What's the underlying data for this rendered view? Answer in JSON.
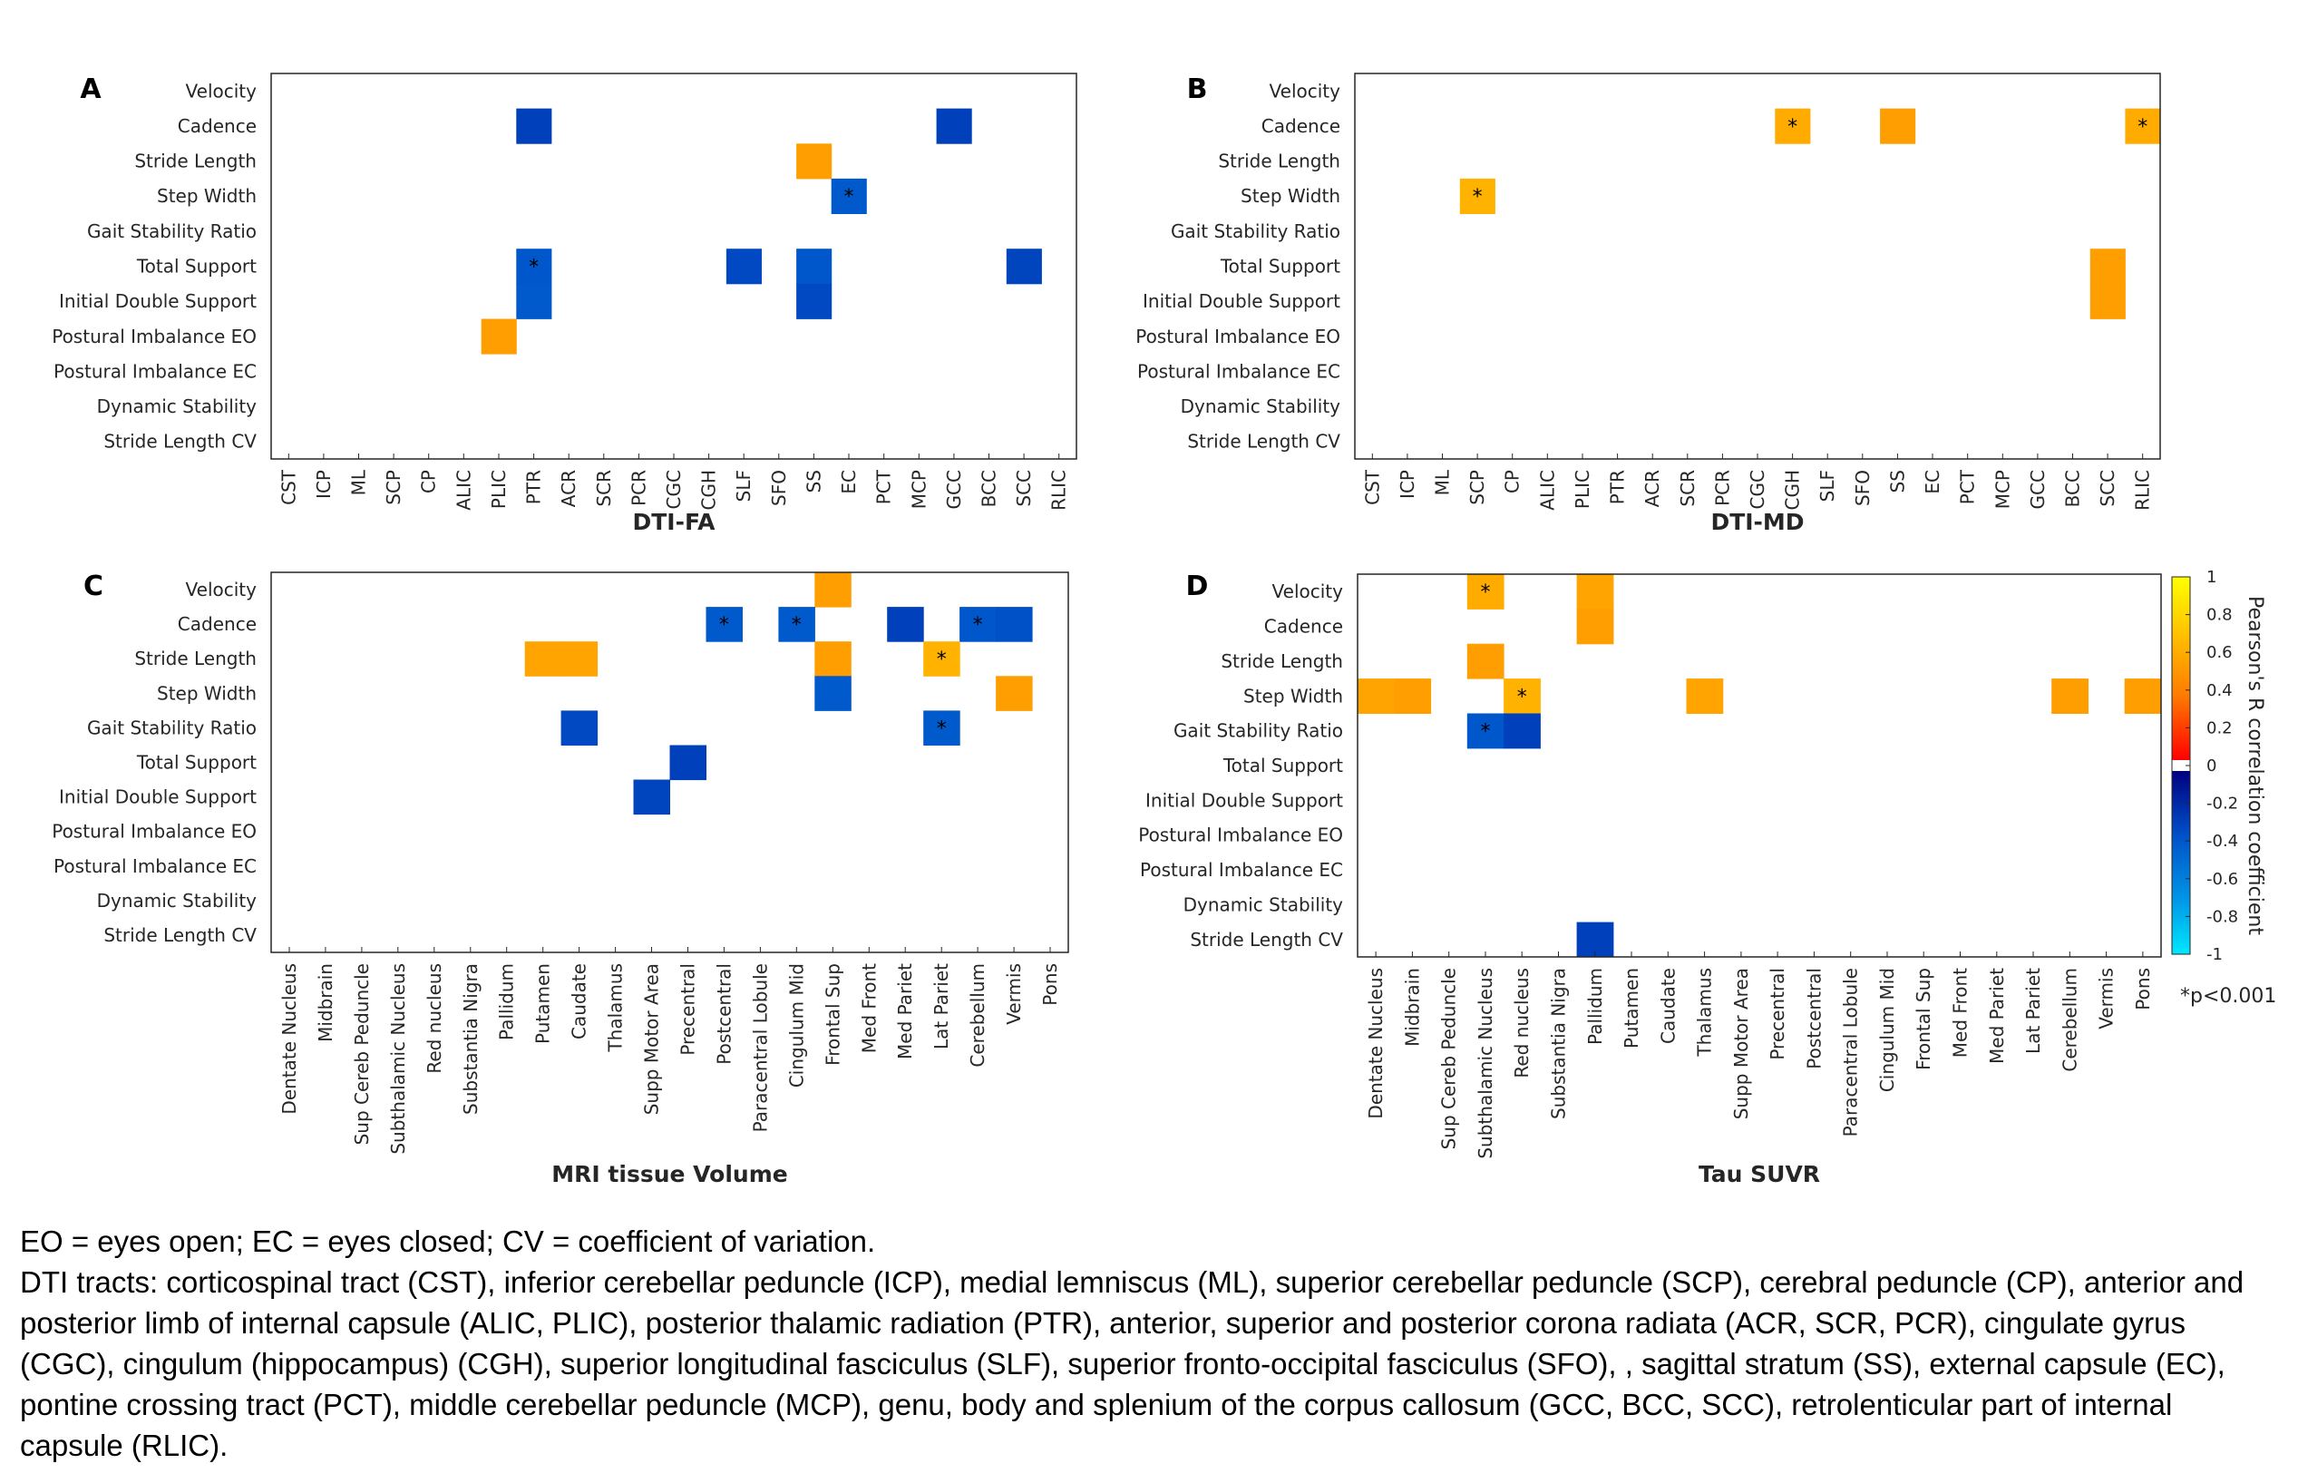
{
  "chart_data": [
    {
      "panel": "A",
      "type": "heatmap",
      "xlabel": "DTI-FA",
      "rows": [
        "Velocity",
        "Cadence",
        "Stride Length",
        "Step Width",
        "Gait Stability Ratio",
        "Total Support",
        "Initial Double Support",
        "Postural Imbalance EO",
        "Postural Imbalance EC",
        "Dynamic Stability",
        "Stride Length CV"
      ],
      "cols": [
        "CST",
        "ICP",
        "ML",
        "SCP",
        "CP",
        "ALIC",
        "PLIC",
        "PTR",
        "ACR",
        "SCR",
        "PCR",
        "CGC",
        "CGH",
        "SLF",
        "SFO",
        "SS",
        "EC",
        "PCT",
        "MCP",
        "GCC",
        "BCC",
        "SCC",
        "RLIC"
      ],
      "cells": [
        {
          "row": "Cadence",
          "col": "PTR",
          "r": -0.72,
          "sig": false
        },
        {
          "row": "Cadence",
          "col": "GCC",
          "r": -0.72,
          "sig": false
        },
        {
          "row": "Stride Length",
          "col": "SS",
          "r": 0.52,
          "sig": false
        },
        {
          "row": "Step Width",
          "col": "EC",
          "r": -0.6,
          "sig": true
        },
        {
          "row": "Total Support",
          "col": "PTR",
          "r": -0.62,
          "sig": true
        },
        {
          "row": "Total Support",
          "col": "SLF",
          "r": -0.68,
          "sig": false
        },
        {
          "row": "Total Support",
          "col": "SS",
          "r": -0.62,
          "sig": false
        },
        {
          "row": "Total Support",
          "col": "SCC",
          "r": -0.7,
          "sig": false
        },
        {
          "row": "Initial Double Support",
          "col": "PTR",
          "r": -0.6,
          "sig": false
        },
        {
          "row": "Initial Double Support",
          "col": "SS",
          "r": -0.68,
          "sig": false
        },
        {
          "row": "Postural Imbalance EO",
          "col": "PLIC",
          "r": 0.52,
          "sig": false
        }
      ]
    },
    {
      "panel": "B",
      "type": "heatmap",
      "xlabel": "DTI-MD",
      "rows": [
        "Velocity",
        "Cadence",
        "Stride Length",
        "Step Width",
        "Gait Stability Ratio",
        "Total Support",
        "Initial Double Support",
        "Postural Imbalance EO",
        "Postural Imbalance EC",
        "Dynamic Stability",
        "Stride Length CV"
      ],
      "cols": [
        "CST",
        "ICP",
        "ML",
        "SCP",
        "CP",
        "ALIC",
        "PLIC",
        "PTR",
        "ACR",
        "SCR",
        "PCR",
        "CGC",
        "CGH",
        "SLF",
        "SFO",
        "SS",
        "EC",
        "PCT",
        "MCP",
        "GCC",
        "BCC",
        "SCC",
        "RLIC"
      ],
      "cells": [
        {
          "row": "Cadence",
          "col": "CGH",
          "r": 0.58,
          "sig": true
        },
        {
          "row": "Cadence",
          "col": "SS",
          "r": 0.52,
          "sig": false
        },
        {
          "row": "Cadence",
          "col": "RLIC",
          "r": 0.58,
          "sig": true
        },
        {
          "row": "Step Width",
          "col": "SCP",
          "r": 0.62,
          "sig": true
        },
        {
          "row": "Total Support",
          "col": "SCC",
          "r": 0.52,
          "sig": false
        },
        {
          "row": "Initial Double Support",
          "col": "SCC",
          "r": 0.52,
          "sig": false
        }
      ]
    },
    {
      "panel": "C",
      "type": "heatmap",
      "xlabel": "MRI tissue Volume",
      "rows": [
        "Velocity",
        "Cadence",
        "Stride Length",
        "Step Width",
        "Gait Stability Ratio",
        "Total Support",
        "Initial Double Support",
        "Postural Imbalance EO",
        "Postural Imbalance EC",
        "Dynamic Stability",
        "Stride Length CV"
      ],
      "cols": [
        "Dentate Nucleus",
        "Midbrain",
        "Sup Cereb Peduncle",
        "Subthalamic Nucleus",
        "Red nucleus",
        "Substantia Nigra",
        "Pallidum",
        "Putamen",
        "Caudate",
        "Thalamus",
        "Supp Motor Area",
        "Precentral",
        "Postcentral",
        "Paracentral Lobule",
        "Cingulum Mid",
        "Frontal Sup",
        "Med Front",
        "Med Pariet",
        "Lat Pariet",
        "Cerebellum",
        "Vermis",
        "Pons"
      ],
      "cells": [
        {
          "row": "Velocity",
          "col": "Frontal Sup",
          "r": 0.52,
          "sig": false
        },
        {
          "row": "Cadence",
          "col": "Postcentral",
          "r": -0.6,
          "sig": true
        },
        {
          "row": "Cadence",
          "col": "Cingulum Mid",
          "r": -0.6,
          "sig": true
        },
        {
          "row": "Cadence",
          "col": "Med Pariet",
          "r": -0.72,
          "sig": false
        },
        {
          "row": "Cadence",
          "col": "Cerebellum",
          "r": -0.62,
          "sig": true
        },
        {
          "row": "Cadence",
          "col": "Vermis",
          "r": -0.65,
          "sig": false
        },
        {
          "row": "Stride Length",
          "col": "Putamen",
          "r": 0.55,
          "sig": false
        },
        {
          "row": "Stride Length",
          "col": "Caudate",
          "r": 0.55,
          "sig": false
        },
        {
          "row": "Stride Length",
          "col": "Frontal Sup",
          "r": 0.52,
          "sig": false
        },
        {
          "row": "Stride Length",
          "col": "Lat Pariet",
          "r": 0.62,
          "sig": true
        },
        {
          "row": "Step Width",
          "col": "Frontal Sup",
          "r": -0.6,
          "sig": false
        },
        {
          "row": "Step Width",
          "col": "Vermis",
          "r": 0.52,
          "sig": false
        },
        {
          "row": "Gait Stability Ratio",
          "col": "Caudate",
          "r": -0.68,
          "sig": false
        },
        {
          "row": "Gait Stability Ratio",
          "col": "Lat Pariet",
          "r": -0.6,
          "sig": true
        },
        {
          "row": "Total Support",
          "col": "Precentral",
          "r": -0.72,
          "sig": false
        },
        {
          "row": "Initial Double Support",
          "col": "Supp Motor Area",
          "r": -0.7,
          "sig": false
        }
      ]
    },
    {
      "panel": "D",
      "type": "heatmap",
      "xlabel": "Tau SUVR",
      "rows": [
        "Velocity",
        "Cadence",
        "Stride Length",
        "Step Width",
        "Gait Stability Ratio",
        "Total Support",
        "Initial Double Support",
        "Postural Imbalance EO",
        "Postural Imbalance EC",
        "Dynamic Stability",
        "Stride Length CV"
      ],
      "cols": [
        "Dentate Nucleus",
        "Midbrain",
        "Sup Cereb Peduncle",
        "Subthalamic Nucleus",
        "Red nucleus",
        "Substantia Nigra",
        "Pallidum",
        "Putamen",
        "Caudate",
        "Thalamus",
        "Supp Motor Area",
        "Precentral",
        "Postcentral",
        "Paracentral Lobule",
        "Cingulum Mid",
        "Frontal Sup",
        "Med Front",
        "Med Pariet",
        "Lat Pariet",
        "Cerebellum",
        "Vermis",
        "Pons"
      ],
      "cells": [
        {
          "row": "Velocity",
          "col": "Subthalamic Nucleus",
          "r": 0.58,
          "sig": true
        },
        {
          "row": "Velocity",
          "col": "Pallidum",
          "r": 0.55,
          "sig": false
        },
        {
          "row": "Cadence",
          "col": "Pallidum",
          "r": 0.52,
          "sig": false
        },
        {
          "row": "Stride Length",
          "col": "Subthalamic Nucleus",
          "r": 0.52,
          "sig": false
        },
        {
          "row": "Step Width",
          "col": "Dentate Nucleus",
          "r": 0.55,
          "sig": false
        },
        {
          "row": "Step Width",
          "col": "Midbrain",
          "r": 0.52,
          "sig": false
        },
        {
          "row": "Step Width",
          "col": "Red nucleus",
          "r": 0.62,
          "sig": true
        },
        {
          "row": "Step Width",
          "col": "Thalamus",
          "r": 0.55,
          "sig": false
        },
        {
          "row": "Step Width",
          "col": "Cerebellum",
          "r": 0.52,
          "sig": false
        },
        {
          "row": "Step Width",
          "col": "Pons",
          "r": 0.52,
          "sig": false
        },
        {
          "row": "Gait Stability Ratio",
          "col": "Subthalamic Nucleus",
          "r": -0.62,
          "sig": true
        },
        {
          "row": "Gait Stability Ratio",
          "col": "Red nucleus",
          "r": -0.72,
          "sig": false
        },
        {
          "row": "Stride Length CV",
          "col": "Pallidum",
          "r": -0.72,
          "sig": false
        }
      ]
    }
  ],
  "colorbar": {
    "title": "Pearson's R correlation coefficient",
    "range": [
      -1,
      1
    ],
    "ticks": [
      "1",
      "0.8",
      "0.6",
      "0.4",
      "0.2",
      "0",
      "-0.2",
      "-0.4",
      "-0.6",
      "-0.8",
      "-1"
    ],
    "note": "*p<0.001"
  },
  "caption": {
    "line1": "EO = eyes open; EC = eyes closed; CV = coefficient of variation.",
    "line2": "DTI tracts: corticospinal tract (CST), inferior cerebellar peduncle (ICP), medial lemniscus (ML), superior cerebellar peduncle (SCP), cerebral peduncle (CP), anterior and posterior limb of internal capsule (ALIC, PLIC), posterior thalamic radiation (PTR), anterior, superior and posterior corona radiata (ACR, SCR, PCR), cingulate gyrus (CGC), cingulum (hippocampus) (CGH), superior longitudinal fasciculus (SLF), superior fronto-occipital fasciculus (SFO), , sagittal stratum (SS), external capsule (EC), pontine crossing tract (PCT), middle cerebellar peduncle (MCP), genu, body and splenium of the corpus callosum (GCC, BCC, SCC), retrolenticular part of internal capsule (RLIC)."
  }
}
